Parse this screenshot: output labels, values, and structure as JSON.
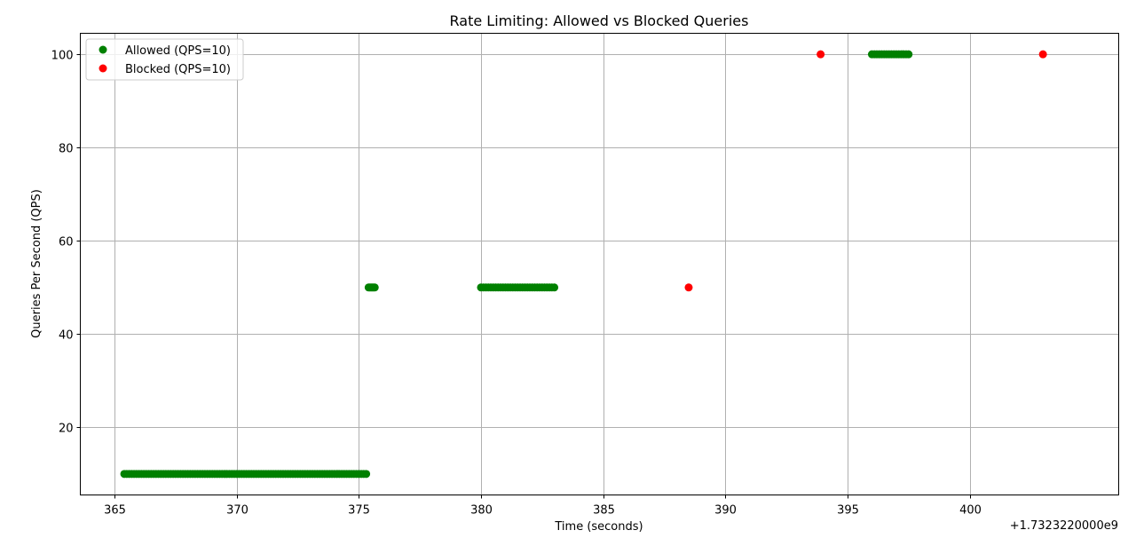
{
  "chart_data": {
    "type": "scatter",
    "title": "Rate Limiting: Allowed vs Blocked Queries",
    "xlabel": "Time (seconds)",
    "ylabel": "Queries Per Second (QPS)",
    "x_offset_label": "+1.7323220000e9",
    "xlim": [
      363.6,
      406.1
    ],
    "ylim": [
      5.5,
      104.5
    ],
    "xticks": [
      365,
      370,
      375,
      380,
      385,
      390,
      395,
      400
    ],
    "yticks": [
      20,
      40,
      60,
      80,
      100
    ],
    "grid": true,
    "legend_position": "top-left",
    "series": [
      {
        "name": "Allowed (QPS=10)",
        "color": "#008000",
        "points": [
          [
            365.4,
            10
          ],
          [
            365.5,
            10
          ],
          [
            365.6,
            10
          ],
          [
            365.7,
            10
          ],
          [
            365.8,
            10
          ],
          [
            365.9,
            10
          ],
          [
            366.0,
            10
          ],
          [
            366.1,
            10
          ],
          [
            366.2,
            10
          ],
          [
            366.3,
            10
          ],
          [
            366.4,
            10
          ],
          [
            366.5,
            10
          ],
          [
            366.6,
            10
          ],
          [
            366.7,
            10
          ],
          [
            366.8,
            10
          ],
          [
            366.9,
            10
          ],
          [
            367.0,
            10
          ],
          [
            367.1,
            10
          ],
          [
            367.2,
            10
          ],
          [
            367.3,
            10
          ],
          [
            367.4,
            10
          ],
          [
            367.5,
            10
          ],
          [
            367.6,
            10
          ],
          [
            367.7,
            10
          ],
          [
            367.8,
            10
          ],
          [
            367.9,
            10
          ],
          [
            368.0,
            10
          ],
          [
            368.1,
            10
          ],
          [
            368.2,
            10
          ],
          [
            368.3,
            10
          ],
          [
            368.4,
            10
          ],
          [
            368.5,
            10
          ],
          [
            368.6,
            10
          ],
          [
            368.7,
            10
          ],
          [
            368.8,
            10
          ],
          [
            368.9,
            10
          ],
          [
            369.0,
            10
          ],
          [
            369.1,
            10
          ],
          [
            369.2,
            10
          ],
          [
            369.3,
            10
          ],
          [
            369.4,
            10
          ],
          [
            369.5,
            10
          ],
          [
            369.6,
            10
          ],
          [
            369.7,
            10
          ],
          [
            369.8,
            10
          ],
          [
            369.9,
            10
          ],
          [
            370.0,
            10
          ],
          [
            370.1,
            10
          ],
          [
            370.2,
            10
          ],
          [
            370.3,
            10
          ],
          [
            370.4,
            10
          ],
          [
            370.5,
            10
          ],
          [
            370.6,
            10
          ],
          [
            370.7,
            10
          ],
          [
            370.8,
            10
          ],
          [
            370.9,
            10
          ],
          [
            371.0,
            10
          ],
          [
            371.1,
            10
          ],
          [
            371.2,
            10
          ],
          [
            371.3,
            10
          ],
          [
            371.4,
            10
          ],
          [
            371.5,
            10
          ],
          [
            371.6,
            10
          ],
          [
            371.7,
            10
          ],
          [
            371.8,
            10
          ],
          [
            371.9,
            10
          ],
          [
            372.0,
            10
          ],
          [
            372.1,
            10
          ],
          [
            372.2,
            10
          ],
          [
            372.3,
            10
          ],
          [
            372.4,
            10
          ],
          [
            372.5,
            10
          ],
          [
            372.6,
            10
          ],
          [
            372.7,
            10
          ],
          [
            372.8,
            10
          ],
          [
            372.9,
            10
          ],
          [
            373.0,
            10
          ],
          [
            373.1,
            10
          ],
          [
            373.2,
            10
          ],
          [
            373.3,
            10
          ],
          [
            373.4,
            10
          ],
          [
            373.5,
            10
          ],
          [
            373.6,
            10
          ],
          [
            373.7,
            10
          ],
          [
            373.8,
            10
          ],
          [
            373.9,
            10
          ],
          [
            374.0,
            10
          ],
          [
            374.1,
            10
          ],
          [
            374.2,
            10
          ],
          [
            374.3,
            10
          ],
          [
            374.4,
            10
          ],
          [
            374.5,
            10
          ],
          [
            374.6,
            10
          ],
          [
            374.7,
            10
          ],
          [
            374.8,
            10
          ],
          [
            374.9,
            10
          ],
          [
            375.0,
            10
          ],
          [
            375.1,
            10
          ],
          [
            375.2,
            10
          ],
          [
            375.3,
            10
          ],
          [
            375.4,
            50
          ],
          [
            375.45,
            50
          ],
          [
            375.5,
            50
          ],
          [
            375.55,
            50
          ],
          [
            375.6,
            50
          ],
          [
            375.65,
            50
          ],
          [
            380.0,
            50
          ],
          [
            380.1,
            50
          ],
          [
            380.2,
            50
          ],
          [
            380.3,
            50
          ],
          [
            380.4,
            50
          ],
          [
            380.5,
            50
          ],
          [
            380.6,
            50
          ],
          [
            380.7,
            50
          ],
          [
            380.8,
            50
          ],
          [
            380.9,
            50
          ],
          [
            381.0,
            50
          ],
          [
            381.1,
            50
          ],
          [
            381.2,
            50
          ],
          [
            381.3,
            50
          ],
          [
            381.4,
            50
          ],
          [
            381.5,
            50
          ],
          [
            381.6,
            50
          ],
          [
            381.7,
            50
          ],
          [
            381.8,
            50
          ],
          [
            381.9,
            50
          ],
          [
            382.0,
            50
          ],
          [
            382.1,
            50
          ],
          [
            382.2,
            50
          ],
          [
            382.3,
            50
          ],
          [
            382.4,
            50
          ],
          [
            382.5,
            50
          ],
          [
            382.6,
            50
          ],
          [
            382.7,
            50
          ],
          [
            382.8,
            50
          ],
          [
            382.9,
            50
          ],
          [
            383.0,
            50
          ],
          [
            396.0,
            100
          ],
          [
            396.1,
            100
          ],
          [
            396.2,
            100
          ],
          [
            396.3,
            100
          ],
          [
            396.4,
            100
          ],
          [
            396.5,
            100
          ],
          [
            396.6,
            100
          ],
          [
            396.7,
            100
          ],
          [
            396.8,
            100
          ],
          [
            396.9,
            100
          ],
          [
            397.0,
            100
          ],
          [
            397.1,
            100
          ],
          [
            397.2,
            100
          ],
          [
            397.3,
            100
          ],
          [
            397.4,
            100
          ],
          [
            397.5,
            100
          ]
        ]
      },
      {
        "name": "Blocked (QPS=10)",
        "color": "#ff0000",
        "points": [
          [
            388.5,
            50
          ],
          [
            393.9,
            100
          ],
          [
            403.0,
            100
          ]
        ]
      }
    ]
  }
}
